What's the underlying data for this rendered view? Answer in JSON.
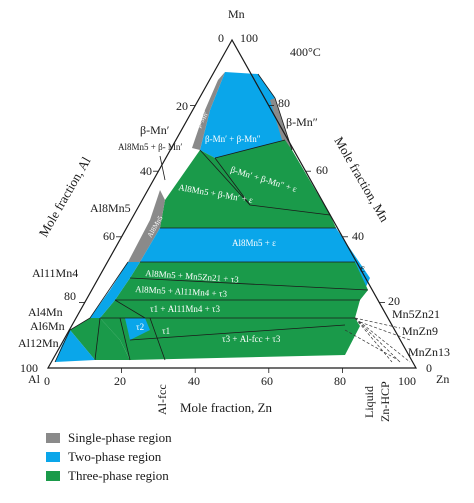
{
  "temperature": "400°C",
  "vertices": {
    "top": "Mn",
    "left": "Al",
    "right": "Zn"
  },
  "axes": {
    "bottom_title": "Mole fraction, Zn",
    "left_title": "Mole fraction, Al",
    "right_title": "Mole fraction, Mn"
  },
  "ticks": {
    "bottom": [
      "0",
      "20",
      "40",
      "60",
      "80",
      "100"
    ],
    "left": [
      "0",
      "20",
      "40",
      "60",
      "80",
      "100"
    ],
    "right": [
      "0",
      "20",
      "40",
      "60",
      "80",
      "100"
    ]
  },
  "phase_labels": {
    "beta_mn_prime": "β-Mn′",
    "beta_mn_dprime": "β-Mn″",
    "al8mn5_beta": "Al8Mn5 + β- Mn′",
    "al8mn5": "Al8Mn5",
    "epsilon": "ε",
    "al11mn4": "Al11Mn4",
    "al4mn": "Al4Mn",
    "al6mn": "Al6Mn",
    "al12mn": "Al12Mn",
    "mn5zn21": "Mn5Zn21",
    "mnzn9": "MnZn9",
    "mnzn13": "MnZn13",
    "al_fcc": "Al-fcc",
    "liquid": "Liquid",
    "zn_hcp": "Zn-HCP"
  },
  "region_labels": {
    "r1": "β-Mn′ + β-Mn″",
    "r2a": "β-Mn′ + β-Mn″ + ε",
    "r3a": "Al8Mn5 + β-Mn′ + ε",
    "r4": "Al8Mn5 + ε",
    "r5a": "Al8Mn5 + Mn5Zn21 + τ3",
    "r6a": "Al8Mn5 + Al11Mn4 + τ3",
    "r7": "τ1 + Al11Mn4 + τ3",
    "r8": "τ3 + Al-fcc + τ3",
    "tau1": "τ1",
    "tau2": "τ2",
    "beta_mn_in_strip": "β-Mn′",
    "al8mn5_in_strip": "Al8Mn5"
  },
  "legend": [
    {
      "label": "Single-phase region",
      "color": "#8a8a8a"
    },
    {
      "label": "Two-phase region",
      "color": "#0aa6ea"
    },
    {
      "label": "Three-phase region",
      "color": "#1a9a4a"
    }
  ],
  "colors": {
    "single": "#8a8a8a",
    "two": "#0aa6ea",
    "three": "#1a9a4a"
  }
}
